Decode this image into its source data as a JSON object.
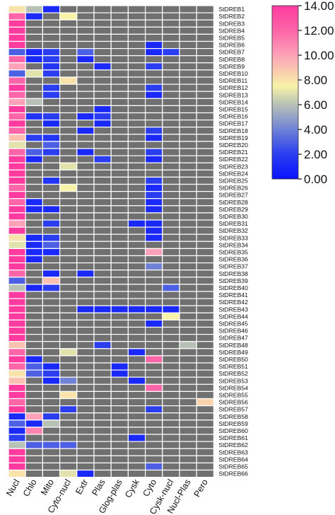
{
  "chart_data": {
    "type": "heatmap",
    "title": "",
    "xlabel": "",
    "ylabel": "",
    "columns": [
      "Nucl",
      "Chlo",
      "Mito",
      "Cyto-nucl",
      "Extr",
      "Plas",
      "Glog-plas",
      "Cysk",
      "Cyto",
      "Cysk-nucl",
      "Nucl-Plas",
      "Pero"
    ],
    "rows": [
      "StDREB1",
      "StDREB2",
      "StDREB3",
      "StDREB4",
      "StDREB5",
      "StDREB6",
      "StDREB7",
      "StDREB8",
      "StDREB9",
      "StDREB10",
      "StDREB11",
      "StDREB12",
      "StDREB13",
      "StDREB14",
      "StDREB15",
      "StDREB16",
      "StDREB17",
      "StDREB18",
      "StDREB19",
      "StDREB20",
      "StDREB21",
      "StDREB22",
      "StDREB23",
      "StDREB24",
      "StDREB25",
      "StDREB26",
      "StDREB27",
      "StDREB28",
      "StDREB29",
      "StDREB30",
      "StDREB31",
      "StDREB32",
      "StDREB33",
      "StDREB34",
      "StDREB35",
      "StDREB36",
      "StDREB37",
      "StDREB38",
      "StDREB39",
      "StDREB40",
      "StDREB41",
      "StDREB42",
      "StDREB43",
      "StDREB44",
      "StDREB45",
      "StDREB46",
      "StDREB47",
      "StDREB48",
      "StDREB49",
      "StDREB50",
      "StDREB51",
      "StDREB52",
      "StDREB53",
      "StDREB54",
      "StDREB55",
      "StDREB56",
      "StDREB57",
      "StDREB58",
      "StDREB59",
      "StDREB60",
      "StDREB61",
      "StDREB62",
      "StDREB63",
      "StDREB64",
      "StDREB65",
      "StDREB66"
    ],
    "values": [
      [
        8,
        6,
        1,
        null,
        null,
        null,
        null,
        null,
        null,
        null,
        null,
        null
      ],
      [
        12,
        1,
        null,
        7.5,
        null,
        null,
        null,
        null,
        null,
        null,
        null,
        null
      ],
      [
        14,
        null,
        null,
        null,
        null,
        null,
        null,
        null,
        null,
        null,
        null,
        null
      ],
      [
        14,
        null,
        null,
        null,
        null,
        null,
        null,
        null,
        null,
        null,
        null,
        null
      ],
      [
        14,
        null,
        null,
        null,
        null,
        null,
        null,
        null,
        null,
        null,
        null,
        null
      ],
      [
        14,
        null,
        null,
        null,
        null,
        null,
        null,
        null,
        1,
        null,
        null,
        null
      ],
      [
        3,
        1,
        2,
        null,
        3,
        null,
        null,
        null,
        1,
        2,
        null,
        null
      ],
      [
        12,
        1,
        2,
        null,
        1,
        null,
        null,
        null,
        null,
        null,
        null,
        null
      ],
      [
        10,
        null,
        1.5,
        null,
        null,
        1,
        null,
        null,
        2,
        null,
        null,
        null
      ],
      [
        3,
        7,
        2,
        null,
        null,
        null,
        null,
        null,
        null,
        null,
        null,
        null
      ],
      [
        12,
        null,
        null,
        8,
        null,
        null,
        null,
        null,
        null,
        null,
        null,
        null
      ],
      [
        14,
        null,
        2,
        null,
        null,
        null,
        null,
        null,
        2,
        null,
        null,
        null
      ],
      [
        12,
        null,
        2,
        null,
        null,
        null,
        null,
        null,
        1,
        null,
        null,
        null
      ],
      [
        10,
        6,
        null,
        null,
        null,
        null,
        null,
        null,
        null,
        null,
        null,
        null
      ],
      [
        14,
        null,
        null,
        null,
        null,
        1,
        null,
        null,
        null,
        null,
        null,
        null
      ],
      [
        12,
        1.5,
        2,
        null,
        1,
        2,
        null,
        null,
        null,
        null,
        null,
        null
      ],
      [
        14,
        null,
        1,
        null,
        null,
        1,
        null,
        null,
        null,
        null,
        null,
        null
      ],
      [
        12,
        null,
        null,
        null,
        1,
        null,
        null,
        null,
        2,
        null,
        null,
        null
      ],
      [
        9,
        2,
        1.5,
        null,
        null,
        null,
        null,
        null,
        1,
        null,
        null,
        null
      ],
      [
        7,
        null,
        3,
        null,
        null,
        null,
        null,
        null,
        null,
        null,
        null,
        null
      ],
      [
        12,
        3,
        2,
        null,
        1,
        null,
        null,
        null,
        2,
        null,
        null,
        null
      ],
      [
        14,
        1,
        null,
        null,
        null,
        2,
        null,
        null,
        1,
        null,
        null,
        null
      ],
      [
        14,
        null,
        null,
        7,
        null,
        null,
        null,
        null,
        null,
        null,
        null,
        null
      ],
      [
        14,
        null,
        null,
        null,
        null,
        null,
        null,
        null,
        null,
        null,
        null,
        null
      ],
      [
        14,
        null,
        1.5,
        null,
        null,
        null,
        null,
        null,
        2,
        null,
        null,
        null
      ],
      [
        12,
        null,
        null,
        7.5,
        null,
        null,
        null,
        null,
        1,
        null,
        null,
        null
      ],
      [
        14,
        null,
        null,
        null,
        null,
        null,
        null,
        null,
        2,
        null,
        null,
        null
      ],
      [
        12,
        1,
        null,
        null,
        null,
        null,
        null,
        null,
        1,
        null,
        null,
        null
      ],
      [
        14,
        1,
        1,
        null,
        null,
        null,
        null,
        null,
        1,
        null,
        null,
        null
      ],
      [
        14,
        null,
        null,
        null,
        null,
        null,
        null,
        null,
        null,
        null,
        null,
        null
      ],
      [
        10,
        null,
        2,
        null,
        null,
        null,
        null,
        1,
        1,
        null,
        null,
        null
      ],
      [
        14,
        null,
        null,
        null,
        null,
        null,
        null,
        null,
        1,
        null,
        null,
        null
      ],
      [
        8,
        1,
        2,
        null,
        null,
        null,
        null,
        null,
        1,
        null,
        null,
        null
      ],
      [
        7,
        1,
        3,
        null,
        null,
        null,
        null,
        null,
        null,
        null,
        null,
        null
      ],
      [
        14,
        1,
        1,
        null,
        null,
        null,
        null,
        null,
        10,
        null,
        null,
        null
      ],
      [
        14,
        1,
        null,
        null,
        null,
        null,
        null,
        null,
        null,
        null,
        null,
        null
      ],
      [
        14,
        null,
        null,
        null,
        null,
        null,
        null,
        null,
        4,
        null,
        null,
        null
      ],
      [
        12,
        null,
        1,
        null,
        1,
        null,
        null,
        null,
        null,
        null,
        null,
        null
      ],
      [
        3,
        null,
        9,
        null,
        null,
        null,
        null,
        null,
        null,
        null,
        null,
        null
      ],
      [
        6,
        1,
        2,
        null,
        null,
        null,
        null,
        null,
        null,
        3,
        null,
        null
      ],
      [
        14,
        null,
        null,
        null,
        null,
        null,
        null,
        null,
        null,
        null,
        null,
        null
      ],
      [
        14,
        null,
        null,
        null,
        null,
        null,
        null,
        null,
        null,
        null,
        null,
        null
      ],
      [
        14,
        null,
        null,
        null,
        1,
        1,
        1,
        1,
        1,
        1,
        null,
        null
      ],
      [
        14,
        null,
        null,
        null,
        null,
        null,
        null,
        null,
        null,
        7.5,
        null,
        null
      ],
      [
        14,
        null,
        null,
        null,
        null,
        null,
        null,
        null,
        1,
        null,
        null,
        null
      ],
      [
        14,
        null,
        null,
        null,
        null,
        null,
        null,
        null,
        null,
        null,
        null,
        null
      ],
      [
        14,
        null,
        null,
        null,
        null,
        null,
        null,
        null,
        null,
        null,
        null,
        null
      ],
      [
        9,
        null,
        null,
        null,
        null,
        2,
        null,
        null,
        null,
        null,
        6,
        null
      ],
      [
        12,
        null,
        null,
        7,
        null,
        null,
        null,
        1,
        null,
        null,
        null,
        null
      ],
      [
        14,
        1,
        null,
        null,
        null,
        null,
        null,
        null,
        12,
        null,
        null,
        null
      ],
      [
        12,
        3,
        1,
        null,
        null,
        null,
        1,
        null,
        null,
        null,
        null,
        null
      ],
      [
        8,
        3,
        2,
        null,
        null,
        null,
        1,
        null,
        null,
        null,
        null,
        null
      ],
      [
        9,
        null,
        1,
        4,
        null,
        null,
        null,
        1,
        null,
        null,
        null,
        null
      ],
      [
        14,
        null,
        null,
        null,
        null,
        null,
        null,
        null,
        12,
        null,
        null,
        null
      ],
      [
        14,
        null,
        null,
        8,
        null,
        null,
        null,
        null,
        null,
        null,
        null,
        null
      ],
      [
        12,
        null,
        null,
        null,
        null,
        null,
        null,
        null,
        null,
        null,
        null,
        8.5
      ],
      [
        14,
        null,
        null,
        2,
        null,
        null,
        null,
        null,
        2,
        null,
        null,
        null
      ],
      [
        1,
        10,
        2,
        null,
        null,
        null,
        null,
        null,
        null,
        null,
        null,
        null
      ],
      [
        3,
        1,
        6,
        null,
        null,
        null,
        null,
        null,
        null,
        null,
        null,
        null
      ],
      [
        1,
        11,
        null,
        null,
        null,
        null,
        null,
        null,
        null,
        null,
        null,
        null
      ],
      [
        2,
        null,
        null,
        null,
        null,
        null,
        null,
        1,
        null,
        null,
        null,
        null
      ],
      [
        6,
        3,
        3,
        3,
        null,
        null,
        null,
        null,
        null,
        null,
        null,
        null
      ],
      [
        14,
        null,
        null,
        null,
        null,
        null,
        null,
        null,
        null,
        null,
        null,
        null
      ],
      [
        14,
        null,
        null,
        null,
        null,
        null,
        null,
        null,
        null,
        null,
        null,
        null
      ],
      [
        14,
        null,
        null,
        null,
        null,
        null,
        null,
        null,
        3,
        null,
        null,
        null
      ],
      [
        8,
        null,
        null,
        7,
        1,
        null,
        null,
        null,
        null,
        null,
        null,
        null
      ]
    ],
    "colorbar": {
      "min": 0,
      "max": 14,
      "tick_labels": [
        "14.00",
        "12.00",
        "10.00",
        "8.00",
        "6.00",
        "4.00",
        "2.00",
        "0.00"
      ],
      "stops": [
        {
          "value": 0,
          "color": "#0a14ff"
        },
        {
          "value": 2,
          "color": "#2a3ef0"
        },
        {
          "value": 4,
          "color": "#6f82d6"
        },
        {
          "value": 6,
          "color": "#b7c1b6"
        },
        {
          "value": 7.5,
          "color": "#f7f3a8"
        },
        {
          "value": 10,
          "color": "#fda2b8"
        },
        {
          "value": 12,
          "color": "#fc65a8"
        },
        {
          "value": 14,
          "color": "#ff3ba0"
        }
      ]
    },
    "missing_color": "#707070"
  }
}
